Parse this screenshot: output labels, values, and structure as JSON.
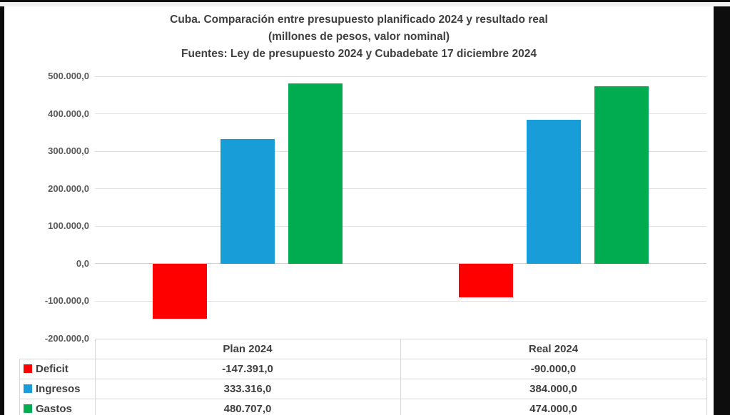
{
  "window": {
    "frame_color": "#0d0d0d",
    "top_strip_color": "#f1f1f1",
    "canvas_color": "#ffffff"
  },
  "title": {
    "line1": "Cuba. Comparación entre presupuesto planificado 2024 y resultado real",
    "line2": "(millones de pesos, valor nominal)",
    "line3": "Fuentes: Ley de presupuesto 2024 y Cubadebate 17 diciembre 2024"
  },
  "chart_data": {
    "type": "bar",
    "title": "Cuba. Comparación entre presupuesto planificado 2024 y resultado real",
    "subtitle": "(millones de pesos, valor nominal)",
    "source_note": "Fuentes: Ley de presupuesto 2024 y Cubadebate 17 diciembre 2024",
    "categories": [
      "Plan 2024",
      "Real 2024"
    ],
    "series": [
      {
        "name": "Deficit",
        "color": "#ff0000",
        "values": [
          -147391.0,
          -90000.0
        ],
        "value_labels": [
          "-147.391,0",
          "-90.000,0"
        ]
      },
      {
        "name": "Ingresos",
        "color": "#189dd8",
        "values": [
          333316.0,
          384000.0
        ],
        "value_labels": [
          "333.316,0",
          "384.000,0"
        ]
      },
      {
        "name": "Gastos",
        "color": "#00ac4f",
        "values": [
          480707.0,
          474000.0
        ],
        "value_labels": [
          "480.707,0",
          "474.000,0"
        ]
      }
    ],
    "ylim": [
      -200000,
      500000
    ],
    "ytick_step": 100000,
    "ytick_labels": [
      "500.000,0",
      "400.000,0",
      "300.000,0",
      "200.000,0",
      "100.000,0",
      "0,0",
      "-100.000,0",
      "-200.000,0"
    ],
    "grid": true,
    "legend_position": "data-table-left",
    "data_table_shown": true
  },
  "colors": {
    "title_text": "#3f3f3f",
    "axis_text": "#595959",
    "table_text": "#3f3f3f",
    "gridline": "#e2e2e2",
    "zero_line": "#d0d0d0",
    "table_border": "#d6d6d6"
  }
}
